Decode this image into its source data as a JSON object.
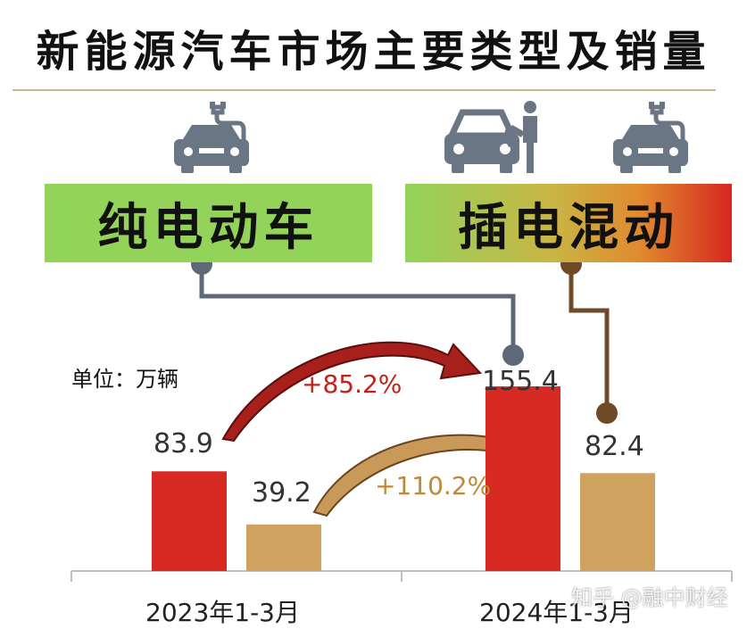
{
  "title": "新能源汽车市场主要类型及销量",
  "categories_top": {
    "bev": "纯电动车",
    "phev": "插电混动"
  },
  "unit_label": "单位：万辆",
  "watermark": "知乎 @融中财经",
  "colors": {
    "bev_bar": "#d62a22",
    "phev_bar": "#cfa25f",
    "bev_label": "#c0211b",
    "phev_label": "#c08a35",
    "connector_bev": "#5e6877",
    "connector_phev": "#6e4a26"
  },
  "icons": [
    "charging-car-icon",
    "fuel-pump-car-icon",
    "charging-car-icon"
  ],
  "chart_data": {
    "type": "bar",
    "categories": [
      "2023年1-3月",
      "2024年1-3月"
    ],
    "series": [
      {
        "name": "纯电动车",
        "values": [
          83.9,
          155.4
        ],
        "labels": [
          "83.9",
          "155.4"
        ]
      },
      {
        "name": "插电混动",
        "values": [
          39.2,
          82.4
        ],
        "labels": [
          "39.2",
          "82.4"
        ]
      }
    ],
    "annotations": [
      {
        "series": "纯电动车",
        "text": "+85.2%"
      },
      {
        "series": "插电混动",
        "text": "+110.2%"
      }
    ],
    "ylim": [
      0,
      190
    ]
  }
}
